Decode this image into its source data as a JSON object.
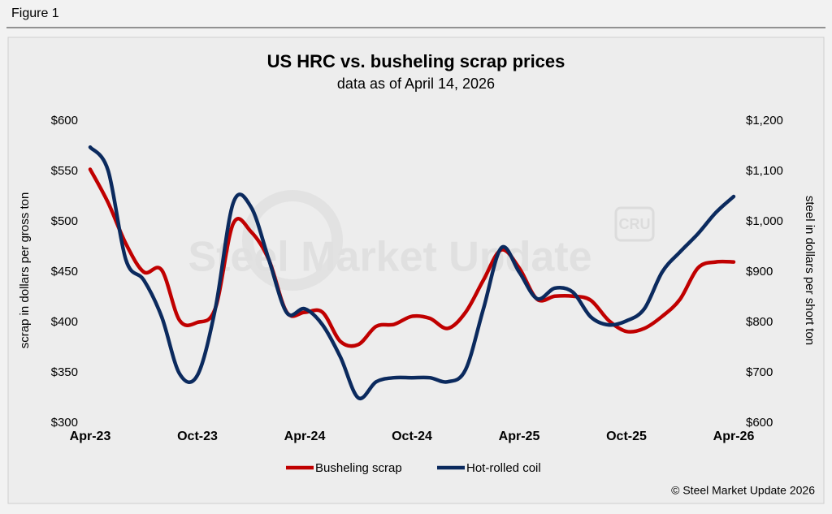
{
  "figure_label": "Figure 1",
  "chart_data": {
    "type": "line",
    "title": "US HRC vs. busheling scrap prices",
    "subtitle": "data as of April 14, 2026",
    "ylabel": "scrap in dollars per gross ton",
    "y2label": "steel in dollars per short ton",
    "watermark": "Steel Market Update",
    "logo": "CRU",
    "copyright": "© Steel Market Update 2026",
    "categories": [
      "Apr-23",
      null,
      null,
      null,
      null,
      null,
      "Oct-23",
      null,
      null,
      null,
      null,
      null,
      "Apr-24",
      null,
      null,
      null,
      null,
      null,
      "Oct-24",
      null,
      null,
      null,
      null,
      null,
      "Apr-25",
      null,
      null,
      null,
      null,
      null,
      "Oct-25",
      null,
      null,
      null,
      null,
      null,
      "Apr-26"
    ],
    "series": [
      {
        "name": "Busheling scrap",
        "color": "#c00000",
        "axis": "y",
        "values": [
          552,
          519,
          478,
          450,
          452,
          402,
          400,
          414,
          498,
          490,
          462,
          410,
          410,
          410,
          381,
          378,
          396,
          398,
          406,
          404,
          394,
          410,
          442,
          472,
          454,
          423,
          426,
          426,
          422,
          402,
          391,
          394,
          406,
          423,
          454,
          460,
          460
        ]
      },
      {
        "name": "Hot-rolled coil",
        "color": "#0b2a5e",
        "axis": "y2",
        "values": [
          1148,
          1102,
          924,
          884,
          811,
          698,
          695,
          827,
          1037,
          1029,
          924,
          819,
          827,
          795,
          731,
          650,
          682,
          690,
          690,
          690,
          682,
          706,
          827,
          948,
          900,
          847,
          868,
          860,
          811,
          795,
          803,
          827,
          900,
          940,
          976,
          1018,
          1050
        ]
      }
    ],
    "ylim": [
      300,
      600
    ],
    "yticks": [
      {
        "value": 300,
        "label": "$300"
      },
      {
        "value": 350,
        "label": "$350"
      },
      {
        "value": 400,
        "label": "$400"
      },
      {
        "value": 450,
        "label": "$450"
      },
      {
        "value": 500,
        "label": "$500"
      },
      {
        "value": 550,
        "label": "$550"
      },
      {
        "value": 600,
        "label": "$600"
      }
    ],
    "y2lim": [
      600,
      1200
    ],
    "y2ticks": [
      {
        "value": 600,
        "label": "$600"
      },
      {
        "value": 700,
        "label": "$700"
      },
      {
        "value": 800,
        "label": "$800"
      },
      {
        "value": 900,
        "label": "$900"
      },
      {
        "value": 1000,
        "label": "$1,000"
      },
      {
        "value": 1100,
        "label": "$1,100"
      },
      {
        "value": 1200,
        "label": "$1,200"
      }
    ],
    "grid": false,
    "legend": "bottom"
  }
}
